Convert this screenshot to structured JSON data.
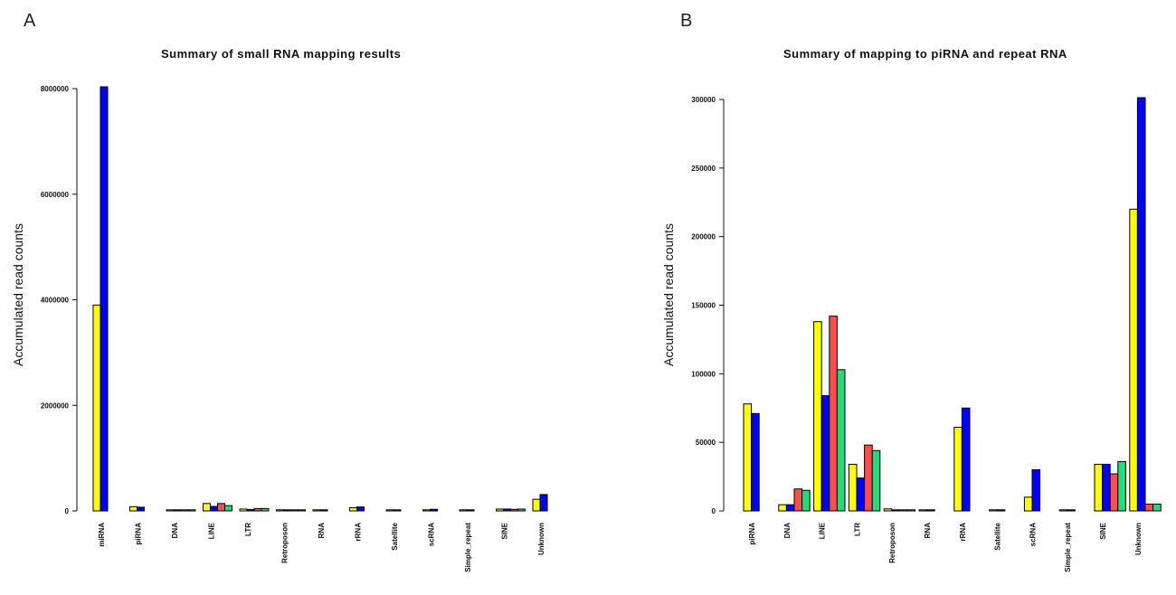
{
  "chart_data": [
    {
      "panel_label": "A",
      "type": "bar",
      "title": "Summary of small RNA mapping results",
      "xlabel": "",
      "ylabel": "Accumulated read counts",
      "ylim": [
        0,
        8000000
      ],
      "yticks": [
        0,
        2000000,
        4000000,
        6000000,
        8000000
      ],
      "yticklabels": [
        "0",
        "2000000",
        "4000000",
        "6000000",
        "8000000"
      ],
      "categories": [
        "miRNA",
        "piRNA",
        "DNA",
        "LINE",
        "LTR",
        "Retroposon",
        "RNA",
        "rRNA",
        "Satellite",
        "scRNA",
        "Simple_repeat",
        "SINE",
        "Unknown"
      ],
      "series": [
        {
          "color": "#ffff00",
          "values": [
            3900000,
            80000,
            5000,
            140000,
            35000,
            1500,
            500,
            60000,
            500,
            10000,
            500,
            35000,
            220000
          ]
        },
        {
          "color": "#0000ff",
          "values": [
            8100000,
            70000,
            5000,
            85000,
            25000,
            1000,
            500,
            75000,
            500,
            30000,
            500,
            35000,
            310000
          ]
        },
        {
          "color": "#ff4d4d",
          "values": [
            0,
            0,
            5000,
            140000,
            45000,
            500,
            0,
            0,
            0,
            0,
            0,
            30000,
            0
          ]
        },
        {
          "color": "#22dd77",
          "values": [
            0,
            0,
            5000,
            100000,
            45000,
            500,
            0,
            0,
            0,
            0,
            0,
            35000,
            0
          ]
        }
      ],
      "grid": false,
      "legend": "none"
    },
    {
      "panel_label": "B",
      "type": "bar",
      "title": "Summary of mapping to piRNA and repeat RNA",
      "xlabel": "",
      "ylabel": "Accumulated read counts",
      "ylim": [
        0,
        300000
      ],
      "yticks": [
        0,
        50000,
        100000,
        150000,
        200000,
        250000,
        300000
      ],
      "yticklabels": [
        "0",
        "50000",
        "100000",
        "150000",
        "200000",
        "250000",
        "300000"
      ],
      "categories": [
        "piRNA",
        "DNA",
        "LINE",
        "LTR",
        "Retroposon",
        "RNA",
        "rRNA",
        "Satellite",
        "scRNA",
        "Simple_repeat",
        "SINE",
        "Unknown"
      ],
      "series": [
        {
          "color": "#ffff00",
          "values": [
            78000,
            4500,
            138000,
            34000,
            1500,
            300,
            61000,
            300,
            10000,
            300,
            34000,
            220000
          ]
        },
        {
          "color": "#0000ff",
          "values": [
            71000,
            4500,
            84000,
            24000,
            800,
            300,
            75000,
            300,
            30000,
            300,
            34000,
            308000
          ]
        },
        {
          "color": "#ff4d4d",
          "values": [
            0,
            16000,
            142000,
            48000,
            300,
            0,
            0,
            0,
            0,
            0,
            27000,
            5000
          ]
        },
        {
          "color": "#22dd77",
          "values": [
            0,
            15000,
            103000,
            44000,
            300,
            0,
            0,
            0,
            0,
            0,
            36000,
            5000
          ]
        }
      ],
      "grid": false,
      "legend": "none"
    }
  ]
}
